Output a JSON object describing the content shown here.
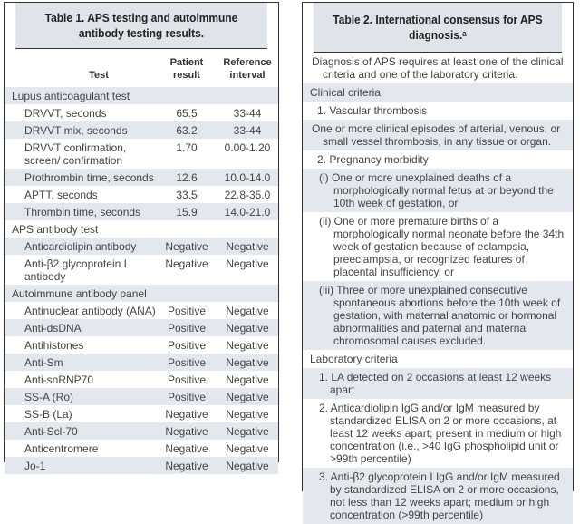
{
  "table1": {
    "title": "Table 1.   APS testing and autoimmune antibody testing results.",
    "headers": [
      "Test",
      "Patient result",
      "Reference interval"
    ],
    "rows": [
      {
        "test": "Lupus anticoagulant test",
        "result": "",
        "ref": "",
        "section": true
      },
      {
        "test": "DRVVT, seconds",
        "result": "65.5",
        "ref": "33-44"
      },
      {
        "test": "DRVVT mix, seconds",
        "result": "63.2",
        "ref": "33-44"
      },
      {
        "test": "DRVVT confirmation, screen/ confirmation",
        "result": "1.70",
        "ref": "0.00-1.20"
      },
      {
        "test": "Prothrombin time, seconds",
        "result": "12.6",
        "ref": "10.0-14.0"
      },
      {
        "test": "APTT, seconds",
        "result": "33.5",
        "ref": "22.8-35.0"
      },
      {
        "test": "Thrombin time, seconds",
        "result": "15.9",
        "ref": "14.0-21.0"
      },
      {
        "test": "APS antibody test",
        "result": "",
        "ref": "",
        "section": true
      },
      {
        "test": "Anticardiolipin antibody",
        "result": "Negative",
        "ref": "Negative"
      },
      {
        "test": "Anti-β2 glycoprotein I antibody",
        "result": "Negative",
        "ref": "Negative"
      },
      {
        "test": "Autoimmune antibody panel",
        "result": "",
        "ref": "",
        "section": true
      },
      {
        "test": "Antinuclear antibody (ANA)",
        "result": "Positive",
        "ref": "Negative"
      },
      {
        "test": "Anti-dsDNA",
        "result": "Positive",
        "ref": "Negative"
      },
      {
        "test": "Antihistones",
        "result": "Positive",
        "ref": "Negative"
      },
      {
        "test": "Anti-Sm",
        "result": "Positive",
        "ref": "Negative"
      },
      {
        "test": "Anti-snRNP70",
        "result": "Positive",
        "ref": "Negative"
      },
      {
        "test": "SS-A (Ro)",
        "result": "Positive",
        "ref": "Negative"
      },
      {
        "test": "SS-B (La)",
        "result": "Negative",
        "ref": "Negative"
      },
      {
        "test": "Anti-Scl-70",
        "result": "Negative",
        "ref": "Negative"
      },
      {
        "test": "Anticentromere",
        "result": "Negative",
        "ref": "Negative"
      },
      {
        "test": "Jo-1",
        "result": "Negative",
        "ref": "Negative"
      }
    ]
  },
  "table2": {
    "title": "Table 2.   International consensus for APS diagnosis.ᵃ",
    "rows": [
      {
        "text": "Diagnosis of APS requires at least one of the clinical criteria and one of the laboratory criteria.",
        "cls": "hang"
      },
      {
        "text": "Clinical criteria",
        "cls": ""
      },
      {
        "text": "1. Vascular thrombosis",
        "cls": "l1"
      },
      {
        "text": "One or more clinical episodes of arterial, venous, or small vessel thrombosis, in any tissue or organ.",
        "cls": "hang"
      },
      {
        "text": "2. Pregnancy morbidity",
        "cls": "l1"
      },
      {
        "text": "(i) One or more unexplained deaths of a morphologically normal fetus at or beyond the 10th week of gestation, or",
        "cls": "l2"
      },
      {
        "text": "(ii) One or more premature births of a morphologically normal neonate before the 34th week of gestation because of eclampsia, preeclampsia, or recognized features of placental insufficiency, or",
        "cls": "l2"
      },
      {
        "text": "(iii) Three or more unexplained consecutive spontaneous abortions before the 10th week of gestation, with maternal anatomic or hormonal abnormalities and paternal and maternal chromosomal causes excluded.",
        "cls": "l2"
      },
      {
        "text": "Laboratory criteria",
        "cls": ""
      },
      {
        "text": "1. LA detected on 2 occasions at least 12 weeks apart",
        "cls": "l3"
      },
      {
        "text": "2. Anticardiolipin IgG and/or IgM measured by standardized ELISA on 2 or more occasions, at least 12 weeks apart; present in medium or high concentration (i.e., >40 IgG phospholipid unit or >99th percentile)",
        "cls": "l3"
      },
      {
        "text": "3. Anti-β2 glycoprotein I IgG and/or IgM measured by standardized ELISA on 2 or more occasions, not less than 12 weeks apart; medium or high concentration (>99th percentile)",
        "cls": "l3"
      }
    ]
  },
  "colors": {
    "header_band": "#dfe4ea",
    "stripe": "#e3e8ee",
    "border": "#333333"
  }
}
